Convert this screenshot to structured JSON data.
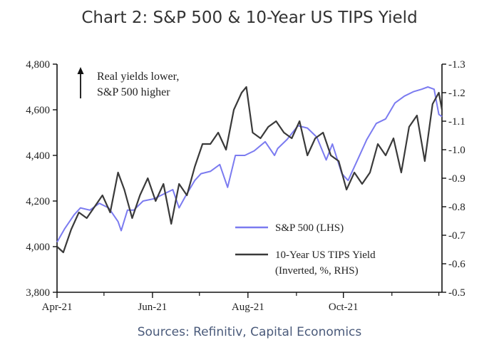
{
  "chart_data": {
    "type": "line",
    "title": "Chart 2: S&P 500 & 10-Year US TIPS Yield",
    "source": "Sources: Refinitiv, Capital Economics",
    "x_ticks": [
      "Apr-21",
      "Jun-21",
      "Aug-21",
      "Oct-21"
    ],
    "x_range": [
      "2021-04-01",
      "2021-12-03"
    ],
    "left_axis": {
      "ticks": [
        "4,800",
        "4,600",
        "4,400",
        "4,200",
        "4,000",
        "3,800"
      ],
      "ylim": [
        3800,
        4800
      ]
    },
    "right_axis": {
      "ticks": [
        "-1.3",
        "-1.2",
        "-1.1",
        "-1.0",
        "-0.9",
        "-0.8",
        "-0.7",
        "-0.6",
        "-0.5"
      ],
      "ylim": [
        -0.5,
        -1.3
      ],
      "inverted": true
    },
    "annotation": [
      "Real yields lower,",
      "S&P 500 higher"
    ],
    "colors": {
      "sp500": "#7b7bf0",
      "tips": "#3a3a3a"
    },
    "series": [
      {
        "name": "S&P 500 (LHS)",
        "axis": "left",
        "x": [
          "2021-04-01",
          "2021-04-06",
          "2021-04-12",
          "2021-04-16",
          "2021-04-22",
          "2021-04-28",
          "2021-05-04",
          "2021-05-10",
          "2021-05-12",
          "2021-05-16",
          "2021-05-20",
          "2021-05-26",
          "2021-06-02",
          "2021-06-08",
          "2021-06-14",
          "2021-06-18",
          "2021-06-22",
          "2021-06-28",
          "2021-07-02",
          "2021-07-08",
          "2021-07-14",
          "2021-07-19",
          "2021-07-24",
          "2021-07-30",
          "2021-08-05",
          "2021-08-12",
          "2021-08-18",
          "2021-08-20",
          "2021-08-26",
          "2021-09-02",
          "2021-09-08",
          "2021-09-14",
          "2021-09-20",
          "2021-09-24",
          "2021-09-30",
          "2021-10-04",
          "2021-10-10",
          "2021-10-16",
          "2021-10-22",
          "2021-10-28",
          "2021-11-03",
          "2021-11-09",
          "2021-11-15",
          "2021-11-20",
          "2021-11-24",
          "2021-11-28",
          "2021-12-01",
          "2021-12-03"
        ],
        "values": [
          4020,
          4080,
          4140,
          4170,
          4160,
          4190,
          4170,
          4110,
          4070,
          4160,
          4160,
          4200,
          4210,
          4230,
          4250,
          4170,
          4220,
          4290,
          4320,
          4330,
          4360,
          4260,
          4400,
          4400,
          4420,
          4460,
          4400,
          4430,
          4470,
          4530,
          4520,
          4480,
          4380,
          4450,
          4320,
          4290,
          4380,
          4470,
          4540,
          4560,
          4630,
          4660,
          4680,
          4690,
          4700,
          4690,
          4580,
          4570
        ]
      },
      {
        "name": "10-Year US TIPS Yield",
        "axis": "right",
        "x": [
          "2021-04-01",
          "2021-04-05",
          "2021-04-10",
          "2021-04-15",
          "2021-04-20",
          "2021-04-25",
          "2021-04-30",
          "2021-05-05",
          "2021-05-10",
          "2021-05-14",
          "2021-05-19",
          "2021-05-24",
          "2021-05-29",
          "2021-06-03",
          "2021-06-08",
          "2021-06-13",
          "2021-06-18",
          "2021-06-23",
          "2021-06-28",
          "2021-07-03",
          "2021-07-08",
          "2021-07-13",
          "2021-07-18",
          "2021-07-23",
          "2021-07-28",
          "2021-07-31",
          "2021-08-04",
          "2021-08-09",
          "2021-08-14",
          "2021-08-19",
          "2021-08-24",
          "2021-08-29",
          "2021-09-03",
          "2021-09-08",
          "2021-09-13",
          "2021-09-18",
          "2021-09-23",
          "2021-09-28",
          "2021-10-03",
          "2021-10-08",
          "2021-10-13",
          "2021-10-18",
          "2021-10-23",
          "2021-10-28",
          "2021-11-02",
          "2021-11-07",
          "2021-11-12",
          "2021-11-17",
          "2021-11-22",
          "2021-11-27",
          "2021-12-01",
          "2021-12-03"
        ],
        "values": [
          -0.66,
          -0.64,
          -0.72,
          -0.78,
          -0.76,
          -0.8,
          -0.84,
          -0.78,
          -0.92,
          -0.86,
          -0.76,
          -0.84,
          -0.9,
          -0.82,
          -0.88,
          -0.74,
          -0.88,
          -0.84,
          -0.94,
          -1.02,
          -1.02,
          -1.06,
          -1.0,
          -1.14,
          -1.2,
          -1.22,
          -1.06,
          -1.04,
          -1.08,
          -1.1,
          -1.06,
          -1.04,
          -1.1,
          -0.98,
          -1.04,
          -1.06,
          -0.98,
          -0.96,
          -0.86,
          -0.92,
          -0.88,
          -0.92,
          -1.02,
          -0.98,
          -1.04,
          -0.92,
          -1.08,
          -1.12,
          -0.96,
          -1.16,
          -1.2,
          -1.14
        ]
      }
    ]
  }
}
